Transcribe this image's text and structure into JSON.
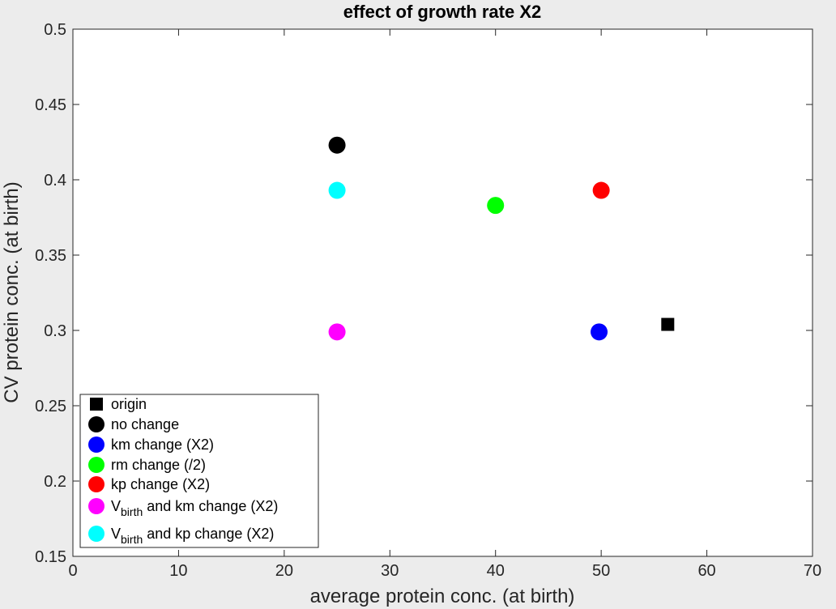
{
  "chart_data": {
    "type": "scatter",
    "title": "effect of growth rate X2",
    "xlabel": "average protein conc. (at birth)",
    "ylabel": "CV protein conc. (at birth)",
    "xlim": [
      0,
      70
    ],
    "ylim": [
      0.15,
      0.5
    ],
    "xticks": [
      "0",
      "10",
      "20",
      "30",
      "40",
      "50",
      "60",
      "70"
    ],
    "yticks": [
      "0.15",
      "0.2",
      "0.25",
      "0.3",
      "0.35",
      "0.4",
      "0.45",
      "0.5"
    ],
    "grid": false,
    "legend_position": "bottom-left",
    "series": [
      {
        "name": "origin",
        "marker": "square",
        "color": "#000000",
        "x": 56.3,
        "y": 0.304
      },
      {
        "name": "no change",
        "marker": "circle",
        "color": "#000000",
        "x": 25.0,
        "y": 0.423
      },
      {
        "name": "km change (X2)",
        "marker": "circle",
        "color": "#0000ff",
        "x": 49.8,
        "y": 0.299
      },
      {
        "name": "rm change (/2)",
        "marker": "circle",
        "color": "#00ff00",
        "x": 40.0,
        "y": 0.383
      },
      {
        "name": "kp change (X2)",
        "marker": "circle",
        "color": "#ff0000",
        "x": 50.0,
        "y": 0.393
      },
      {
        "name": "V",
        "name_sub": "birth",
        "name_suffix": " and km change (X2)",
        "marker": "circle",
        "color": "#ff00ff",
        "x": 25.0,
        "y": 0.299
      },
      {
        "name": "V",
        "name_sub": "birth",
        "name_suffix": " and kp change (X2)",
        "marker": "circle",
        "color": "#00ffff",
        "x": 25.0,
        "y": 0.393
      }
    ]
  }
}
